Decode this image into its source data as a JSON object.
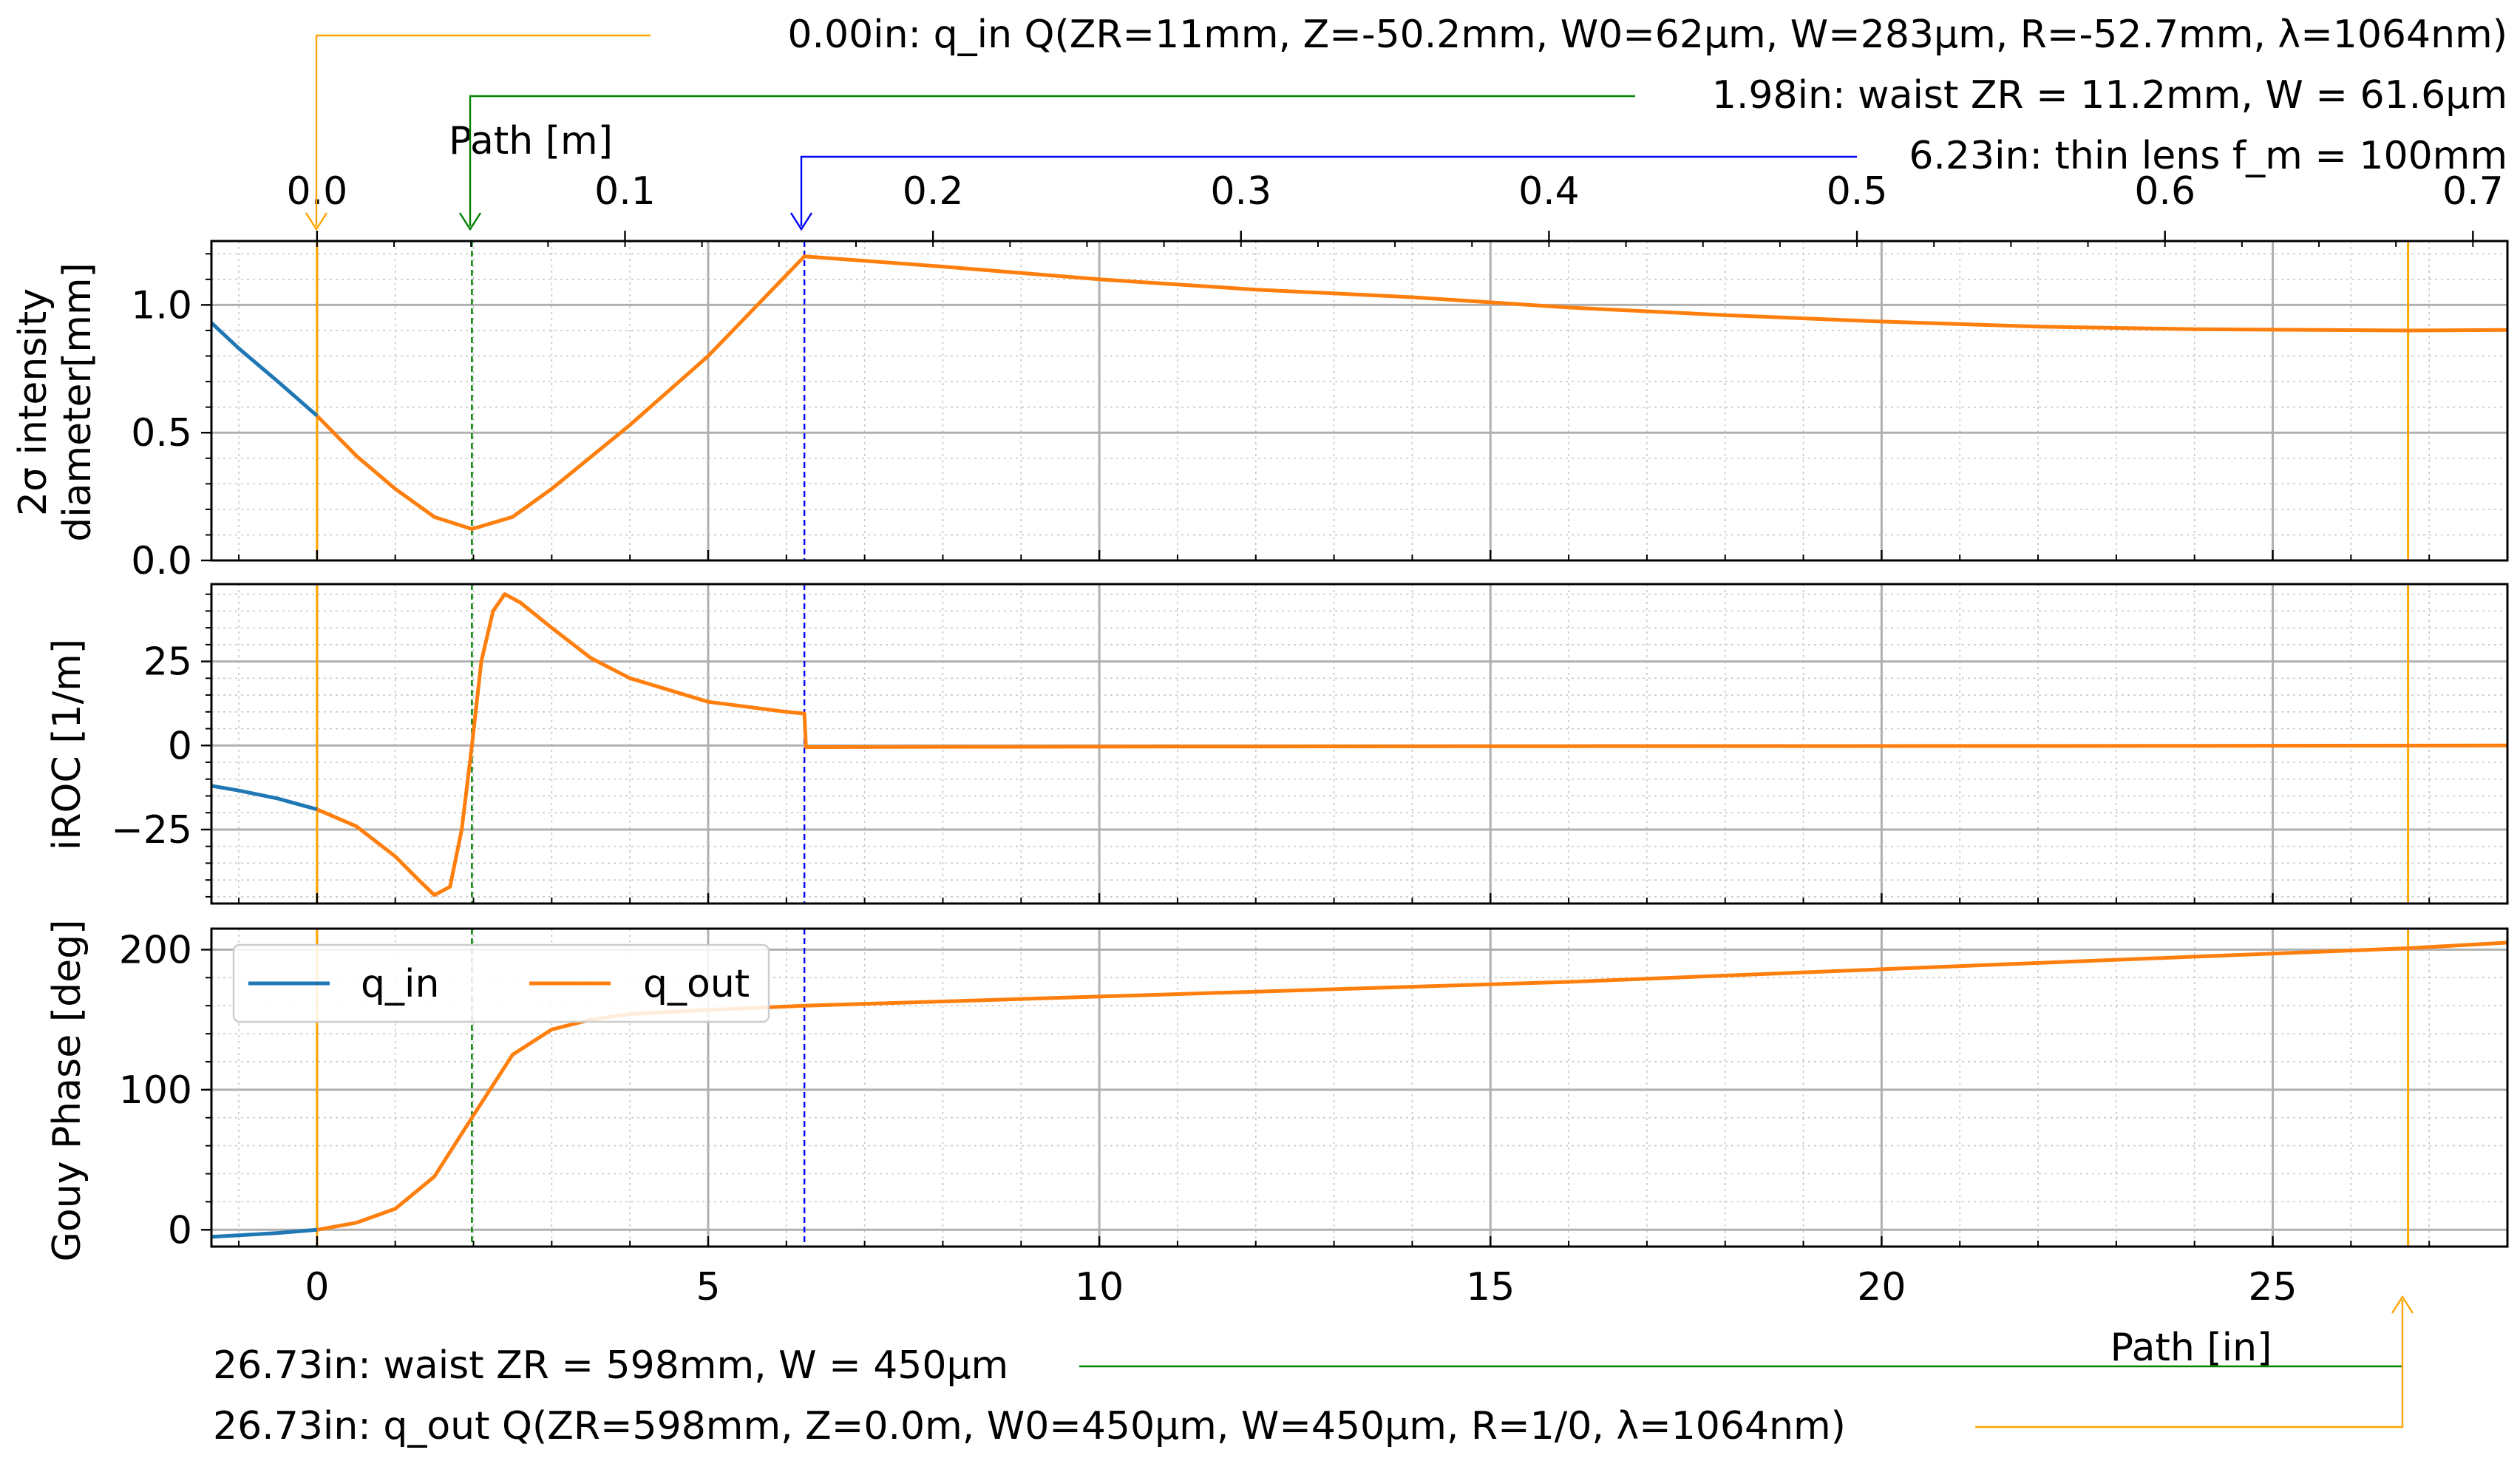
{
  "colors": {
    "q_in": "#1f77b4",
    "q_out": "#ff7f0e",
    "annot_orange": "#ffa500",
    "annot_green": "#008000",
    "annot_blue": "#0000ff",
    "grid_major": "#b0b0b0",
    "grid_minor": "#c8c8c8"
  },
  "axes": {
    "bottom_label": "Path [in]",
    "top_label": "Path [m]",
    "panel1_ylabel_line1": "2σ intensity",
    "panel1_ylabel_line2": "diameter[mm]",
    "panel2_ylabel": "iROC [1/m]",
    "panel3_ylabel": "Gouy Phase [deg]"
  },
  "annotations": {
    "a_top1": "0.00in: q_in Q(ZR=11mm, Z=-50.2mm, W0=62µm, W=283µm, R=-52.7mm, λ=1064nm)",
    "a_top2": "1.98in: waist ZR = 11.2mm, W = 61.6µm",
    "a_top3": "6.23in: thin lens f_m = 100mm",
    "a_bot1": "26.73in: waist ZR = 598mm, W = 450µm",
    "a_bot2": "26.73in: q_out Q(ZR=598mm, Z=0.0m, W0=450µm, W=450µm, R=1/0, λ=1064nm)"
  },
  "legend": {
    "q_in": "q_in",
    "q_out": "q_out"
  },
  "chart_data": [
    {
      "type": "line",
      "panel": "beam diameter",
      "xlabel": "Path [in]",
      "ylabel": "2σ intensity diameter[mm]",
      "xlim": [
        -1.35,
        28.0
      ],
      "ylim": [
        0.0,
        1.25
      ],
      "yticks": [
        "0.0",
        "0.5",
        "1.0"
      ],
      "series": [
        {
          "name": "q_in",
          "x": [
            -1.35,
            -1.0,
            -0.5,
            0.0
          ],
          "y": [
            0.93,
            0.83,
            0.7,
            0.566
          ]
        },
        {
          "name": "q_out",
          "x": [
            0.0,
            0.5,
            1.0,
            1.5,
            1.98,
            2.5,
            3.0,
            4.0,
            5.0,
            6.23,
            8.0,
            10.0,
            12.0,
            14.0,
            16.0,
            18.0,
            20.0,
            22.0,
            24.0,
            26.73,
            28.0
          ],
          "y": [
            0.566,
            0.41,
            0.28,
            0.17,
            0.123,
            0.17,
            0.28,
            0.53,
            0.8,
            1.19,
            1.15,
            1.1,
            1.06,
            1.03,
            0.99,
            0.96,
            0.935,
            0.915,
            0.905,
            0.9,
            0.902
          ]
        }
      ]
    },
    {
      "type": "line",
      "panel": "inverse radius of curvature",
      "xlabel": "Path [in]",
      "ylabel": "iROC [1/m]",
      "xlim": [
        -1.35,
        28.0
      ],
      "ylim": [
        -47.0,
        48.0
      ],
      "yticks": [
        "−25",
        "0",
        "25"
      ],
      "series": [
        {
          "name": "q_in",
          "x": [
            -1.35,
            -1.0,
            -0.5,
            0.0
          ],
          "y": [
            -12.0,
            -13.4,
            -15.8,
            -19.0
          ]
        },
        {
          "name": "q_out",
          "x": [
            0.0,
            0.5,
            1.0,
            1.3,
            1.5,
            1.7,
            1.85,
            1.98,
            2.1,
            2.25,
            2.4,
            2.6,
            3.0,
            3.5,
            4.0,
            5.0,
            6.0,
            6.23,
            6.25,
            8.0,
            12.0,
            16.0,
            20.0,
            24.0,
            28.0
          ],
          "y": [
            -19.0,
            -24.0,
            -33.0,
            -40.0,
            -44.5,
            -42.0,
            -25.0,
            0.0,
            25.0,
            40.0,
            45.0,
            42.5,
            35.0,
            26.0,
            20.0,
            13.0,
            10.0,
            9.5,
            -0.5,
            -0.4,
            -0.3,
            -0.2,
            -0.15,
            -0.1,
            0.0
          ]
        }
      ]
    },
    {
      "type": "line",
      "panel": "gouy phase",
      "xlabel": "Path [in]",
      "ylabel": "Gouy Phase [deg]",
      "xlim": [
        -1.35,
        28.0
      ],
      "ylim": [
        -12.0,
        215.0
      ],
      "yticks": [
        "0",
        "100",
        "200"
      ],
      "series": [
        {
          "name": "q_in",
          "x": [
            -1.35,
            -1.0,
            -0.5,
            0.0
          ],
          "y": [
            -5.0,
            -4.0,
            -2.3,
            0.0
          ]
        },
        {
          "name": "q_out",
          "x": [
            0.0,
            0.5,
            1.0,
            1.5,
            1.98,
            2.5,
            3.0,
            3.5,
            4.0,
            5.0,
            6.23,
            8.0,
            12.0,
            16.0,
            20.0,
            24.0,
            26.73,
            28.0
          ],
          "y": [
            0.0,
            5.0,
            15.0,
            38.0,
            80.0,
            125.0,
            143.0,
            150.0,
            154.0,
            157.0,
            160.0,
            163.0,
            170.0,
            177.0,
            186.0,
            195.0,
            201.0,
            205.0
          ]
        }
      ]
    }
  ],
  "top_axis": {
    "label": "Path [m]",
    "xlim_m": [
      -0.0343,
      0.7112
    ],
    "ticks": [
      "0.0",
      "0.1",
      "0.2",
      "0.3",
      "0.4",
      "0.5",
      "0.6",
      "0.7"
    ]
  },
  "bottom_axis": {
    "ticks": [
      "0",
      "5",
      "10",
      "15",
      "20",
      "25"
    ]
  },
  "markers": [
    {
      "name": "q_in",
      "x_in": 0.0,
      "color": "orange",
      "style": "solid"
    },
    {
      "name": "waist",
      "x_in": 1.98,
      "color": "green",
      "style": "dashed"
    },
    {
      "name": "thin lens",
      "x_in": 6.23,
      "color": "blue",
      "style": "dashed"
    },
    {
      "name": "q_out",
      "x_in": 26.73,
      "color": "orange",
      "style": "solid"
    }
  ]
}
